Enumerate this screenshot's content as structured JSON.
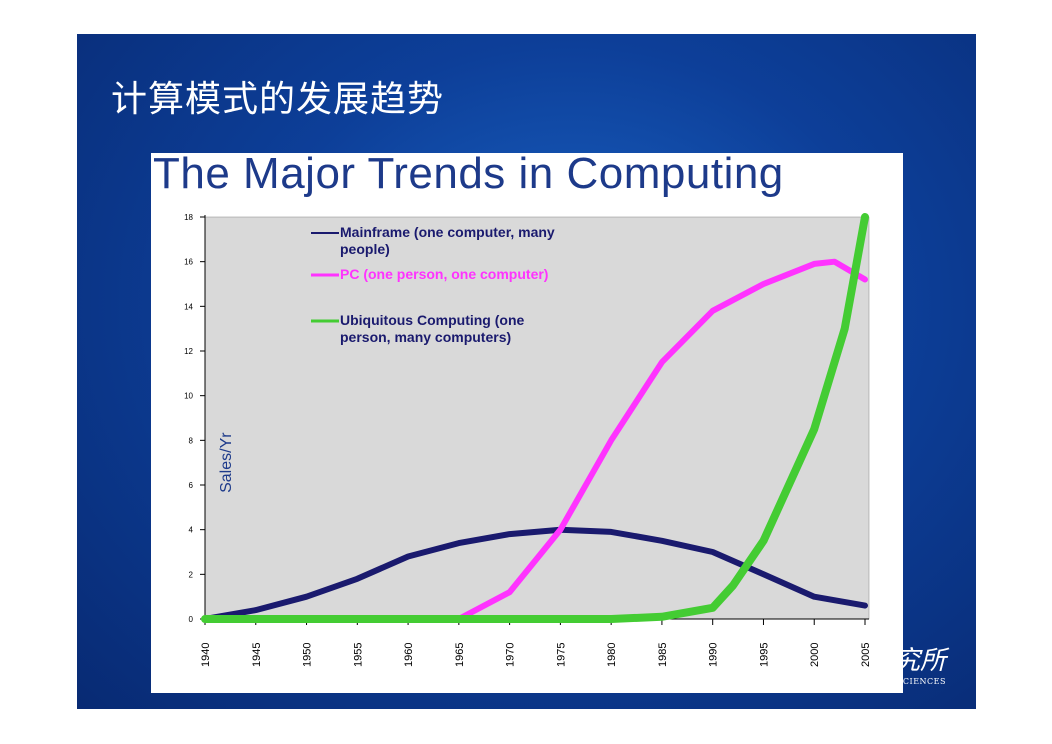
{
  "slide": {
    "title": "计算模式的发展趋势",
    "watermark_cn": "究所",
    "watermark_en": "SCIENCES"
  },
  "colors": {
    "background": "#0d3f99",
    "plot_area": "#d9d9d9",
    "mainframe": "#1a1a6e",
    "pc": "#ff33ff",
    "ubiquitous": "#44cc33",
    "title": "#1d3a8a"
  },
  "chart_data": {
    "type": "line",
    "title": "The Major Trends in Computing",
    "xlabel": "",
    "ylabel": "Sales/Yr",
    "xlim": [
      1940,
      2005
    ],
    "ylim": [
      0,
      18
    ],
    "x_ticks": [
      "1940",
      "1945",
      "1950",
      "1955",
      "1960",
      "1965",
      "1970",
      "1975",
      "1980",
      "1985",
      "1990",
      "1995",
      "2000",
      "2005"
    ],
    "y_ticks": [
      "0",
      "2",
      "4",
      "6",
      "8",
      "10",
      "12",
      "14",
      "16",
      "18"
    ],
    "grid": false,
    "legend_position": "top-left",
    "series": [
      {
        "name": "Mainframe (one computer, many people)",
        "color": "#1a1a6e",
        "points": [
          [
            1940,
            0
          ],
          [
            1945,
            0.4
          ],
          [
            1950,
            1.0
          ],
          [
            1955,
            1.8
          ],
          [
            1960,
            2.8
          ],
          [
            1965,
            3.4
          ],
          [
            1970,
            3.8
          ],
          [
            1975,
            4.0
          ],
          [
            1980,
            3.9
          ],
          [
            1985,
            3.5
          ],
          [
            1990,
            3.0
          ],
          [
            1995,
            2.0
          ],
          [
            2000,
            1.0
          ],
          [
            2005,
            0.6
          ]
        ]
      },
      {
        "name": "PC (one person, one computer)",
        "color": "#ff33ff",
        "points": [
          [
            1940,
            0
          ],
          [
            1962,
            0
          ],
          [
            1965,
            0
          ],
          [
            1970,
            1.2
          ],
          [
            1975,
            4.0
          ],
          [
            1980,
            8.0
          ],
          [
            1985,
            11.5
          ],
          [
            1990,
            13.8
          ],
          [
            1995,
            15.0
          ],
          [
            2000,
            15.9
          ],
          [
            2002,
            16.0
          ],
          [
            2005,
            15.2
          ]
        ]
      },
      {
        "name": "Ubiquitous Computing (one person, many computers)",
        "color": "#44cc33",
        "points": [
          [
            1940,
            0
          ],
          [
            1980,
            0
          ],
          [
            1985,
            0.1
          ],
          [
            1990,
            0.5
          ],
          [
            1992,
            1.5
          ],
          [
            1995,
            3.5
          ],
          [
            2000,
            8.5
          ],
          [
            2003,
            13.0
          ],
          [
            2005,
            18.0
          ]
        ]
      }
    ]
  }
}
